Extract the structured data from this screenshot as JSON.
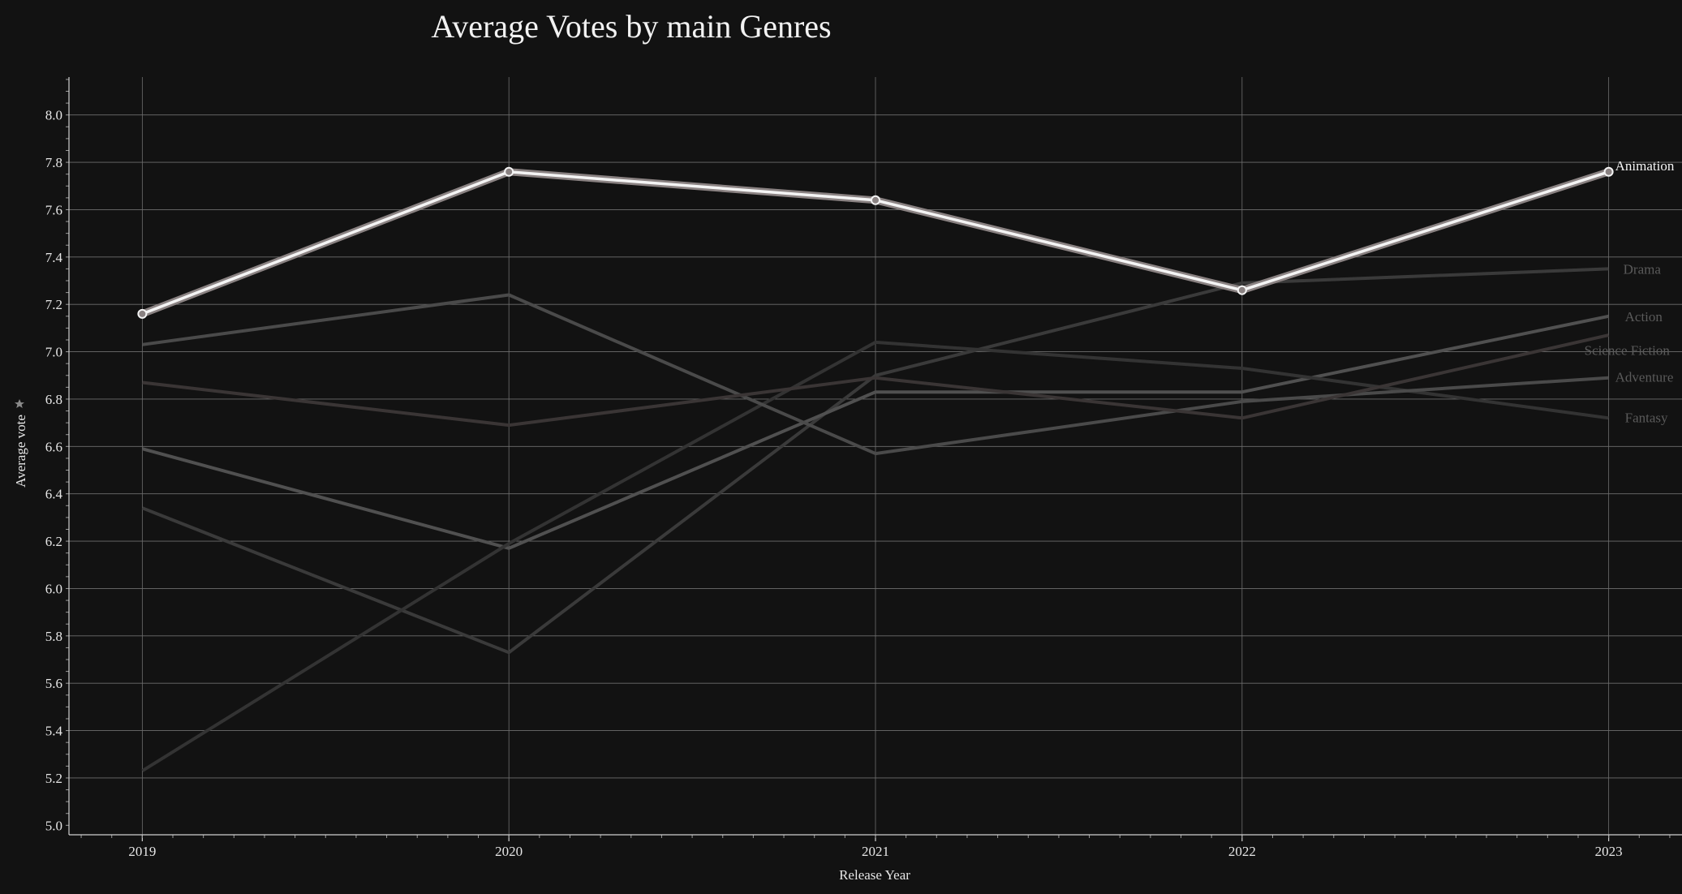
{
  "chart_data": {
    "type": "line",
    "title": "Average Votes by main Genres",
    "xlabel": "Release Year",
    "ylabel": "Average vote",
    "ylabel_icon": "star-icon",
    "x": [
      "2019",
      "2020",
      "2021",
      "2022",
      "2023"
    ],
    "xlim": [
      2018.8,
      2023.2
    ],
    "ylim": [
      4.96,
      8.16
    ],
    "yticks": [
      "5.0",
      "5.2",
      "5.4",
      "5.6",
      "5.8",
      "6.0",
      "6.2",
      "6.4",
      "6.6",
      "6.8",
      "7.0",
      "7.2",
      "7.4",
      "7.6",
      "7.8",
      "8.0"
    ],
    "grid": true,
    "highlighted_series": "Animation",
    "series": [
      {
        "name": "Animation",
        "values": [
          7.16,
          7.76,
          7.64,
          7.26,
          7.76
        ],
        "color": "#f0f0f0"
      },
      {
        "name": "Drama",
        "values": [
          6.34,
          5.73,
          6.9,
          7.29,
          7.35
        ],
        "color": "#3a3a3a"
      },
      {
        "name": "Action",
        "values": [
          6.59,
          6.17,
          6.83,
          6.83,
          7.15
        ],
        "color": "#505050"
      },
      {
        "name": "Science Fiction",
        "values": [
          5.23,
          6.19,
          7.04,
          6.93,
          6.72
        ],
        "color": "#333333"
      },
      {
        "name": "Adventure",
        "values": [
          7.03,
          7.24,
          6.57,
          6.79,
          6.89
        ],
        "color": "#4a4a4a"
      },
      {
        "name": "Fantasy",
        "values": [
          6.87,
          6.69,
          6.89,
          6.72,
          7.07
        ],
        "color": "#3a3535"
      }
    ]
  }
}
